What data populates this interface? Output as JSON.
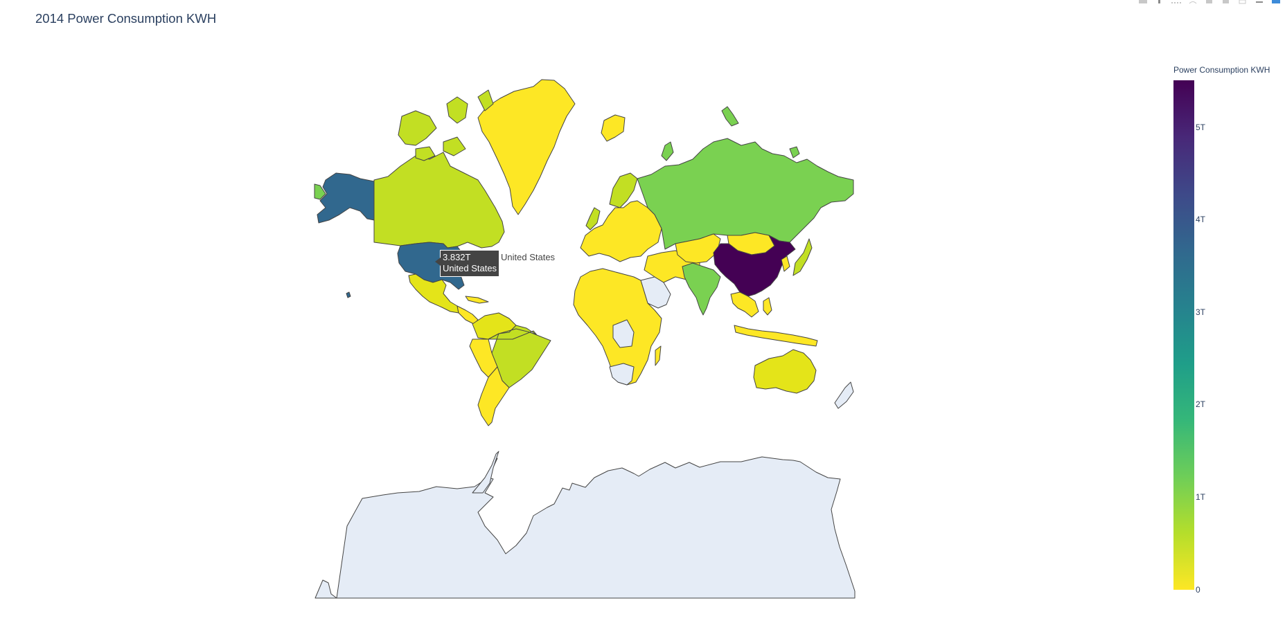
{
  "title": "2014 Power Consumption KWH",
  "colorbar": {
    "title": "Power Consumption KWH",
    "colorscale": "Viridis (reversed)",
    "ticks": [
      "0",
      "1T",
      "2T",
      "3T",
      "4T",
      "5T"
    ],
    "tick_values": [
      0,
      1000000000000,
      2000000000000,
      3000000000000,
      4000000000000,
      5000000000000
    ],
    "max": 5500000000000
  },
  "hover": {
    "value": "3.832T",
    "country": "United States",
    "trace_name": "United States"
  },
  "colors": {
    "no_data": "#e5ecf6",
    "border": "#444444",
    "china": "#440154",
    "usa": "#31688e",
    "russia": "#7ad151",
    "india": "#7ad151",
    "canada": "#c2df23",
    "brazil": "#c2df23",
    "low": "#fde725",
    "lowmid": "#e4e419",
    "mid_low": "#d8e219"
  },
  "modebar": {
    "icons": [
      "camera-icon",
      "zoom-icon",
      "pan-icon",
      "lasso-icon",
      "zoom-in-icon",
      "zoom-out-icon",
      "autoscale-icon",
      "reset-icon",
      "toggle-spike-icon",
      "plotly-logo-icon"
    ]
  },
  "chart_data": {
    "type": "choropleth",
    "title": "2014 Power Consumption KWH",
    "colorbar_title": "Power Consumption KWH",
    "range": [
      0,
      5500000000000
    ],
    "highlighted": {
      "country": "United States",
      "value": 3832000000000
    },
    "regions": [
      {
        "name": "China",
        "color_level": "max"
      },
      {
        "name": "United States",
        "value": 3832000000000
      },
      {
        "name": "Russia",
        "color_level": "~1T"
      },
      {
        "name": "India",
        "color_level": "~1T"
      },
      {
        "name": "Canada",
        "color_level": "~0.6T"
      },
      {
        "name": "Brazil",
        "color_level": "~0.5T"
      },
      {
        "name": "Greenland",
        "color_level": "~0"
      },
      {
        "name": "Australia",
        "color_level": "~0.2T"
      },
      {
        "name": "Antarctica",
        "color_level": "no data"
      }
    ]
  }
}
